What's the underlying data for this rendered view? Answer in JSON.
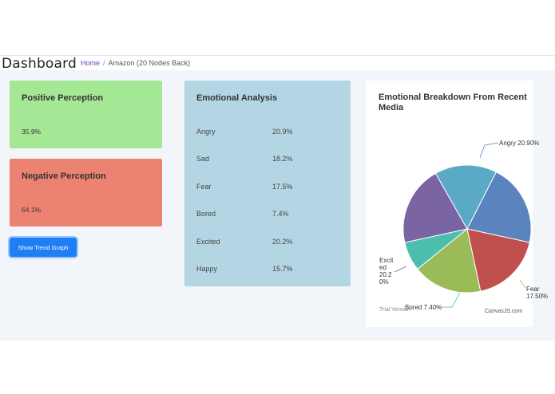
{
  "header": {
    "title": "Dashboard",
    "breadcrumb_home": "Home",
    "breadcrumb_sep": "/",
    "breadcrumb_current": "Amazon (20 Nodes Back)"
  },
  "positive": {
    "label": "Positive Perception",
    "value": "35.9%"
  },
  "negative": {
    "label": "Negative Perception",
    "value": "64.1%"
  },
  "trend_button": "Show Trend Graph",
  "emotional": {
    "title": "Emotional Analysis",
    "rows": [
      {
        "name": "Angry",
        "pct": "20.9%"
      },
      {
        "name": "Sad",
        "pct": "18.2%"
      },
      {
        "name": "Fear",
        "pct": "17.5%"
      },
      {
        "name": "Bored",
        "pct": "7.4%"
      },
      {
        "name": "Excited",
        "pct": "20.2%"
      },
      {
        "name": "Happy",
        "pct": "15.7%"
      }
    ]
  },
  "pie": {
    "title": "Emotional Breakdown From Recent Media",
    "trial": "Trial Version",
    "credit": "CanvasJS.com",
    "labels": {
      "angry": "Angry 20.90%",
      "fear": [
        "Fear",
        "17.50%"
      ],
      "bored": "Bored 7.40%",
      "excited": [
        "Excit",
        "ed",
        "20.2",
        "0%"
      ]
    }
  },
  "chart_data": {
    "type": "pie",
    "title": "Emotional Breakdown From Recent Media",
    "categories": [
      "Angry",
      "Sad",
      "Fear",
      "Bored",
      "Excited",
      "Happy"
    ],
    "values": [
      20.9,
      18.2,
      17.5,
      7.4,
      20.2,
      15.7
    ],
    "colors": [
      "#5b83bd",
      "#c0504d",
      "#9bbb59",
      "#4bbfad",
      "#7a64a3",
      "#5aa9c5"
    ]
  }
}
